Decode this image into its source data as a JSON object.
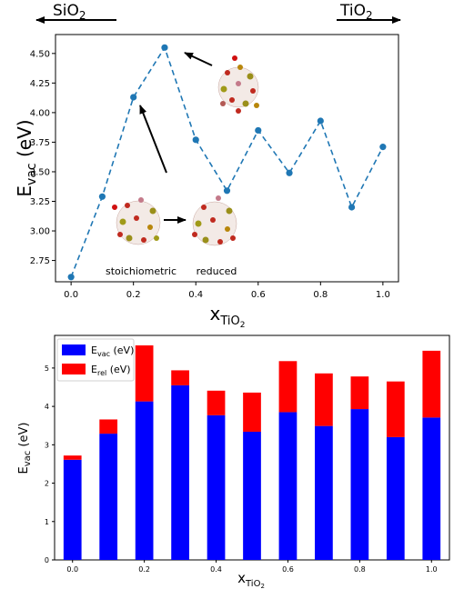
{
  "header": {
    "left_label": "SiO",
    "left_sub": "2",
    "right_label": "TiO",
    "right_sub": "2",
    "arrow_color": "#000000"
  },
  "chart_data": [
    {
      "type": "line",
      "style": "dashed-with-markers",
      "color": "#1f77b4",
      "x": [
        0.0,
        0.1,
        0.2,
        0.3,
        0.4,
        0.5,
        0.6,
        0.7,
        0.8,
        0.9,
        1.0
      ],
      "y": [
        2.61,
        3.29,
        4.13,
        4.55,
        3.77,
        3.34,
        3.85,
        3.49,
        3.93,
        3.2,
        3.71
      ],
      "xlim": [
        -0.05,
        1.05
      ],
      "ylim": [
        2.57,
        4.66
      ],
      "xticks": [
        0.0,
        0.2,
        0.4,
        0.6,
        0.8,
        1.0
      ],
      "yticks": [
        2.75,
        3.0,
        3.25,
        3.5,
        3.75,
        4.0,
        4.25,
        4.5
      ],
      "xtick_labels": [
        "0.0",
        "0.2",
        "0.4",
        "0.6",
        "0.8",
        "1.0"
      ],
      "ytick_labels": [
        "2.75",
        "3.00",
        "3.25",
        "3.50",
        "3.75",
        "4.00",
        "4.25",
        "4.50"
      ],
      "xlabel": {
        "main": "x",
        "sub": "TiO",
        "subsub": "2"
      },
      "ylabel": {
        "main": "E",
        "sub": "vac",
        "unit": " (eV)"
      },
      "annotations": [
        "stoichiometric",
        "reduced"
      ],
      "grid": false
    },
    {
      "type": "bar",
      "stacked": true,
      "x": [
        0.0,
        0.1,
        0.2,
        0.3,
        0.4,
        0.5,
        0.6,
        0.7,
        0.8,
        0.9,
        1.0
      ],
      "series": [
        {
          "name": "E_vac (eV)",
          "label_main": "E",
          "label_sub": "vac",
          "label_unit": " (eV)",
          "color": "#0000ff",
          "values": [
            2.61,
            3.29,
            4.13,
            4.55,
            3.77,
            3.34,
            3.85,
            3.49,
            3.93,
            3.2,
            3.71
          ]
        },
        {
          "name": "E_rel (eV)",
          "label_main": "E",
          "label_sub": "rel",
          "label_unit": " (eV)",
          "color": "#ff0000",
          "values": [
            0.11,
            0.37,
            1.46,
            0.39,
            0.64,
            1.02,
            1.33,
            1.37,
            0.85,
            1.45,
            1.74
          ]
        }
      ],
      "xlim": [
        -0.05,
        1.05
      ],
      "ylim": [
        0,
        5.85
      ],
      "xticks": [
        0.0,
        0.2,
        0.4,
        0.6,
        0.8,
        1.0
      ],
      "yticks": [
        0,
        1,
        2,
        3,
        4,
        5
      ],
      "xtick_labels": [
        "0.0",
        "0.2",
        "0.4",
        "0.6",
        "0.8",
        "1.0"
      ],
      "ytick_labels": [
        "0",
        "1",
        "2",
        "3",
        "4",
        "5"
      ],
      "xlabel": {
        "main": "x",
        "sub": "TiO",
        "subsub": "2"
      },
      "ylabel": {
        "main": "E",
        "sub": "vac",
        "unit": " (eV)"
      },
      "legend_location": "top-left",
      "grid": false
    }
  ]
}
